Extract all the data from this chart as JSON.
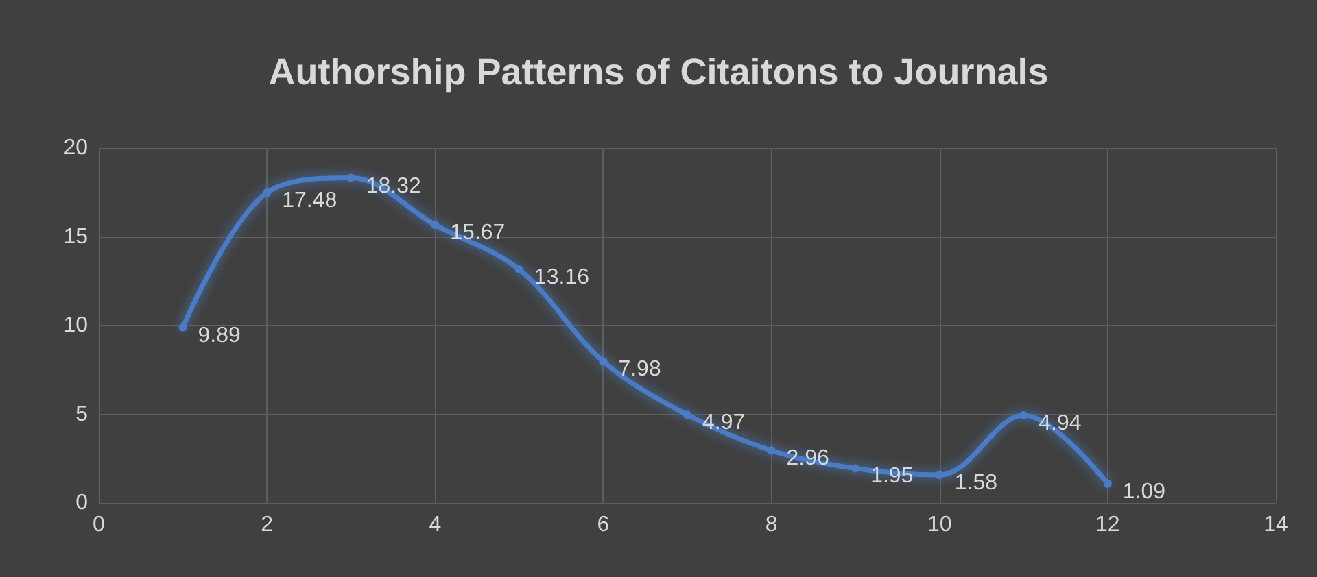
{
  "chart_data": {
    "type": "line",
    "title": "Authorship Patterns of Citaitons to Journals",
    "x": [
      1,
      2,
      3,
      4,
      5,
      6,
      7,
      8,
      9,
      10,
      11,
      12
    ],
    "series": [
      {
        "color": "#4a7cc4",
        "values": [
          9.89,
          17.48,
          18.32,
          15.67,
          13.16,
          7.98,
          4.97,
          2.96,
          1.95,
          1.58,
          4.94,
          1.09
        ]
      }
    ],
    "xlim": [
      0,
      14
    ],
    "xticks": [
      0,
      2,
      4,
      6,
      8,
      10,
      12,
      14
    ],
    "ylim": [
      0,
      20
    ],
    "yticks": [
      0,
      5,
      10,
      15,
      20
    ],
    "grid": true,
    "marker": "circle",
    "line_style": "solid",
    "data_labels": true
  }
}
